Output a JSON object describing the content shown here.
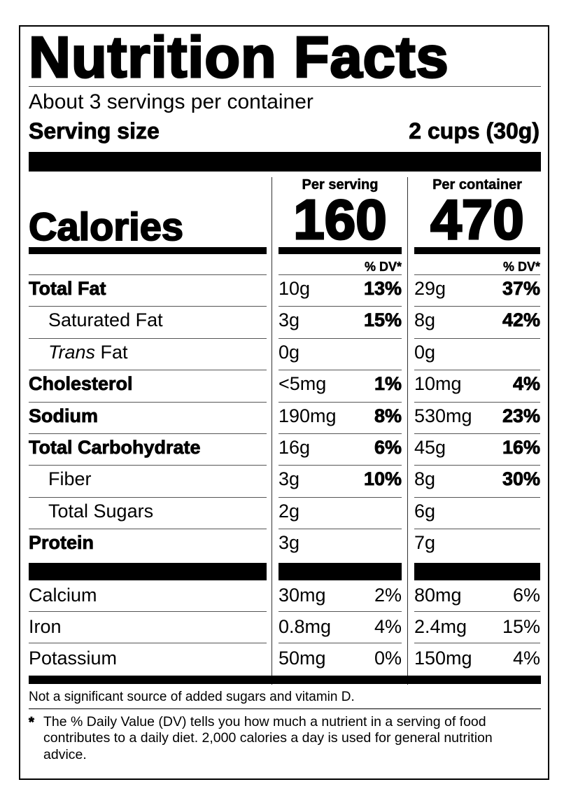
{
  "title": "Nutrition Facts",
  "servings": "About 3 servings per container",
  "serving_size": {
    "label": "Serving size",
    "value": "2 cups (30g)"
  },
  "calories_label": "Calories",
  "columns": [
    {
      "label": "Per serving",
      "calories": "160",
      "dv_label": "% DV*"
    },
    {
      "label": "Per container",
      "calories": "470",
      "dv_label": "% DV*"
    }
  ],
  "nutrients": [
    {
      "name": "Total Fat",
      "bold": true,
      "indent": false,
      "amounts": [
        [
          "10g",
          "13%"
        ],
        [
          "29g",
          "37%"
        ]
      ]
    },
    {
      "name": "Saturated Fat",
      "bold": false,
      "indent": true,
      "amounts": [
        [
          "3g",
          "15%"
        ],
        [
          "8g",
          "42%"
        ]
      ]
    },
    {
      "name_italic": "Trans",
      "name": "Fat",
      "bold": false,
      "indent": true,
      "amounts": [
        [
          "0g"
        ],
        [
          "0g"
        ]
      ]
    },
    {
      "name": "Cholesterol",
      "bold": true,
      "indent": false,
      "amounts": [
        [
          "<5mg",
          "1%"
        ],
        [
          "10mg",
          "4%"
        ]
      ]
    },
    {
      "name": "Sodium",
      "bold": true,
      "indent": false,
      "amounts": [
        [
          "190mg",
          "8%"
        ],
        [
          "530mg",
          "23%"
        ]
      ]
    },
    {
      "name": "Total Carbohydrate",
      "bold": true,
      "indent": false,
      "amounts": [
        [
          "16g",
          "6%"
        ],
        [
          "45g",
          "16%"
        ]
      ]
    },
    {
      "name": "Fiber",
      "bold": false,
      "indent": true,
      "amounts": [
        [
          "3g",
          "10%"
        ],
        [
          "8g",
          "30%"
        ]
      ]
    },
    {
      "name": "Total Sugars",
      "bold": false,
      "indent": true,
      "amounts": [
        [
          "2g"
        ],
        [
          "6g"
        ]
      ]
    },
    {
      "name": "Protein",
      "bold": true,
      "indent": false,
      "amounts": [
        [
          "3g"
        ],
        [
          "7g"
        ]
      ]
    }
  ],
  "minerals": [
    {
      "name": "Calcium",
      "amounts": [
        [
          "30mg",
          "2%"
        ],
        [
          "80mg",
          "6%"
        ]
      ]
    },
    {
      "name": "Iron",
      "amounts": [
        [
          "0.8mg",
          "4%"
        ],
        [
          "2.4mg",
          "15%"
        ]
      ]
    },
    {
      "name": "Potassium",
      "amounts": [
        [
          "50mg",
          "0%"
        ],
        [
          "150mg",
          "4%"
        ]
      ]
    }
  ],
  "note": "Not a significant source of added sugars and vitamin D.",
  "footnote": {
    "mark": "*",
    "text": "The % Daily Value (DV) tells you how much a nutrient in a serving of food contributes to a daily diet. 2,000 calories a day is used for general nutrition advice."
  }
}
